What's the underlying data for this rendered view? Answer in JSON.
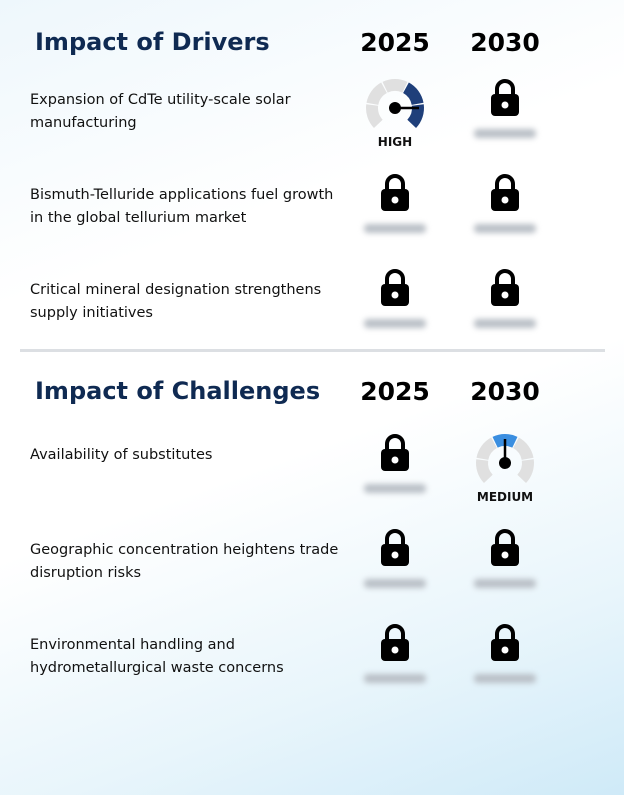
{
  "drivers": {
    "title": "Impact of Drivers",
    "years": [
      "2025",
      "2030"
    ],
    "rows": [
      {
        "label": "Expansion of CdTe utility-scale solar manufacturing",
        "cells": [
          {
            "type": "gauge",
            "level": "high",
            "text": "HIGH"
          },
          {
            "type": "locked"
          }
        ]
      },
      {
        "label": "Bismuth-Telluride applications fuel growth in the global tellurium market",
        "cells": [
          {
            "type": "locked"
          },
          {
            "type": "locked"
          }
        ]
      },
      {
        "label": "Critical mineral designation strengthens supply initiatives",
        "cells": [
          {
            "type": "locked"
          },
          {
            "type": "locked"
          }
        ]
      }
    ]
  },
  "challenges": {
    "title": "Impact of Challenges",
    "years": [
      "2025",
      "2030"
    ],
    "rows": [
      {
        "label": "Availability of substitutes",
        "cells": [
          {
            "type": "locked"
          },
          {
            "type": "gauge",
            "level": "medium",
            "text": "MEDIUM"
          }
        ]
      },
      {
        "label": "Geographic concentration heightens trade disruption risks",
        "cells": [
          {
            "type": "locked"
          },
          {
            "type": "locked"
          }
        ]
      },
      {
        "label": "Environmental handling and hydrometallurgical waste concerns",
        "cells": [
          {
            "type": "locked"
          },
          {
            "type": "locked"
          }
        ]
      }
    ]
  },
  "colors": {
    "title": "#0f2a52",
    "high": "#1f3f7a",
    "medium": "#3a8ee0",
    "gauge_track": "#e0e0e0"
  }
}
